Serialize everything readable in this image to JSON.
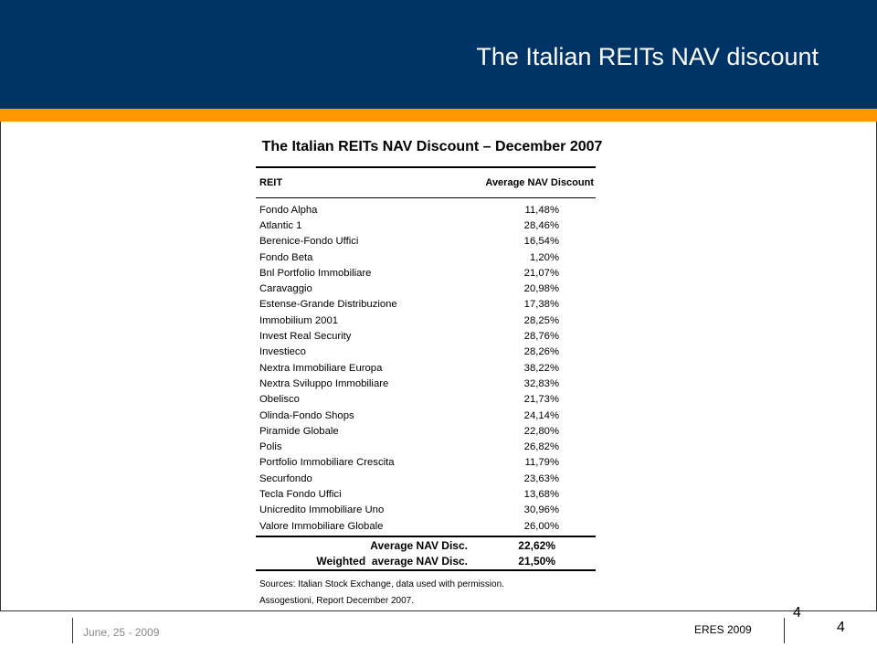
{
  "slide": {
    "title": "The Italian REITs NAV discount",
    "subtitle": "The Italian REITs NAV Discount – December 2007"
  },
  "table": {
    "headers": [
      "REIT",
      "Average NAV Discount"
    ],
    "rows": [
      [
        "Fondo Alpha",
        "11,48%"
      ],
      [
        "Atlantic 1",
        "28,46%"
      ],
      [
        "Berenice-Fondo Uffici",
        "16,54%"
      ],
      [
        "Fondo Beta",
        "1,20%"
      ],
      [
        "Bnl Portfolio Immobiliare",
        "21,07%"
      ],
      [
        "Caravaggio",
        "20,98%"
      ],
      [
        "Estense-Grande Distribuzione",
        "17,38%"
      ],
      [
        "Immobilium 2001",
        "28,25%"
      ],
      [
        "Invest Real Security",
        "28,76%"
      ],
      [
        "Investieco",
        "28,26%"
      ],
      [
        "Nextra Immobiliare Europa",
        "38,22%"
      ],
      [
        "Nextra Sviluppo Immobiliare",
        "32,83%"
      ],
      [
        "Obelisco",
        "21,73%"
      ],
      [
        "Olinda-Fondo Shops",
        "24,14%"
      ],
      [
        "Piramide Globale",
        "22,80%"
      ],
      [
        "Polis",
        "26,82%"
      ],
      [
        "Portfolio Immobiliare Crescita",
        "11,79%"
      ],
      [
        "Securfondo",
        "23,63%"
      ],
      [
        "Tecla Fondo Uffici",
        "13,68%"
      ],
      [
        "Unicredito Immobiliare Uno",
        "30,96%"
      ],
      [
        "Valore Immobiliare Globale",
        "26,00%"
      ]
    ],
    "summary": [
      {
        "label": "Average NAV Disc.",
        "value": "22,62%"
      },
      {
        "label": "Weighted  average NAV Disc.",
        "value": "21,50%"
      }
    ],
    "sources": [
      "Sources: Italian Stock Exchange, data used with permission.",
      "Assogestioni, Report December 2007."
    ]
  },
  "footer": {
    "date": "June, 25 - 2009",
    "conference": "ERES 2009",
    "page_top": "4",
    "page": "4"
  },
  "colors": {
    "header_bg": "#003366",
    "accent_bar": "#ff9900"
  }
}
